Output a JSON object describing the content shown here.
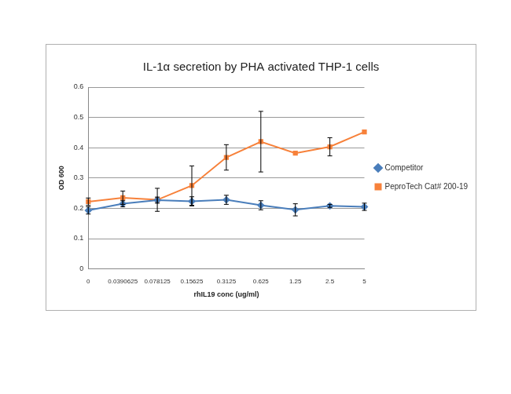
{
  "chart_data": {
    "type": "line",
    "title": "IL-1α secretion by PHA activated THP-1 cells",
    "x_label": "rhIL19 conc (ug/ml)",
    "y_label": "OD 600",
    "categories": [
      "0",
      "0.0390625",
      "0.078125",
      "0.15625",
      "0.3125",
      "0.625",
      "1.25",
      "2.5",
      "5"
    ],
    "series": [
      {
        "name": "Competitor",
        "color": "#4a7ebb",
        "marker": "diamond",
        "values": [
          0.193,
          0.215,
          0.227,
          0.223,
          0.228,
          0.21,
          0.195,
          0.208,
          0.205
        ],
        "errors": [
          0.012,
          0.01,
          0.01,
          0.015,
          0.015,
          0.015,
          0.02,
          0.005,
          0.012
        ]
      },
      {
        "name": "PeproTech Cat# 200-19",
        "color": "#f7813a",
        "marker": "square",
        "values": [
          0.222,
          0.235,
          0.228,
          0.275,
          0.368,
          0.42,
          0.382,
          0.403,
          0.452
        ],
        "errors": [
          0.012,
          0.022,
          0.038,
          0.065,
          0.042,
          0.1,
          0,
          0.03,
          0
        ]
      }
    ],
    "ylim": [
      0,
      0.6
    ],
    "yticks": [
      0,
      0.1,
      0.2,
      0.3,
      0.4,
      0.5,
      0.6
    ],
    "grid": true,
    "legend": "right"
  }
}
